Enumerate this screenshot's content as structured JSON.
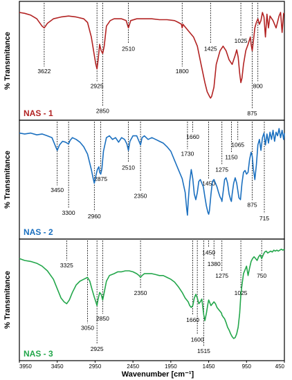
{
  "chart_data": {
    "type": "line",
    "xlabel": "Wavenumber [cm⁻¹]",
    "ylabel": "% Transmitance",
    "xlim": [
      3950,
      450
    ],
    "x_reversed": true,
    "x_ticks": [
      3950,
      3450,
      2950,
      2450,
      1950,
      1450,
      950,
      450
    ],
    "x_tick_labels": [
      "3950",
      "3450",
      "2950",
      "2450",
      "1950",
      "1450",
      "950",
      "450"
    ],
    "grid": false,
    "panels": [
      {
        "label": "NAS - 1",
        "color": "#b22222",
        "x": [
          3950,
          3880,
          3800,
          3720,
          3650,
          3622,
          3580,
          3500,
          3400,
          3300,
          3200,
          3100,
          3050,
          3000,
          2960,
          2940,
          2925,
          2910,
          2890,
          2870,
          2850,
          2830,
          2800,
          2750,
          2700,
          2600,
          2540,
          2510,
          2480,
          2400,
          2300,
          2200,
          2100,
          2000,
          1900,
          1850,
          1810,
          1800,
          1790,
          1750,
          1700,
          1650,
          1600,
          1550,
          1500,
          1470,
          1440,
          1425,
          1410,
          1380,
          1350,
          1300,
          1260,
          1220,
          1180,
          1140,
          1100,
          1080,
          1060,
          1040,
          1025,
          1010,
          990,
          960,
          930,
          900,
          890,
          875,
          860,
          840,
          820,
          800,
          780,
          760,
          740,
          720,
          700,
          680,
          660,
          640,
          600,
          560,
          520,
          500,
          480,
          460,
          450
        ],
        "y": [
          97,
          96,
          94,
          90,
          82,
          80,
          85,
          90,
          92,
          93,
          92,
          90,
          86,
          70,
          50,
          40,
          35,
          45,
          62,
          55,
          52,
          60,
          82,
          88,
          90,
          90,
          88,
          80,
          88,
          90,
          90,
          90,
          89,
          89,
          88,
          86,
          84,
          80,
          84,
          80,
          75,
          70,
          60,
          40,
          20,
          10,
          5,
          3,
          5,
          15,
          40,
          55,
          60,
          55,
          45,
          40,
          50,
          56,
          48,
          30,
          20,
          25,
          40,
          55,
          62,
          70,
          62,
          55,
          65,
          80,
          86,
          90,
          84,
          88,
          97,
          92,
          70,
          95,
          80,
          93,
          88,
          80,
          93,
          97,
          75,
          96,
          96
        ]
      },
      {
        "label": "NAS - 2",
        "color": "#1a6fbf",
        "x": [
          3950,
          3880,
          3800,
          3720,
          3650,
          3580,
          3520,
          3470,
          3450,
          3420,
          3380,
          3340,
          3300,
          3280,
          3250,
          3200,
          3150,
          3100,
          3050,
          3000,
          2975,
          2960,
          2940,
          2920,
          2900,
          2890,
          2875,
          2860,
          2840,
          2800,
          2760,
          2720,
          2680,
          2640,
          2600,
          2560,
          2530,
          2510,
          2490,
          2450,
          2400,
          2370,
          2350,
          2330,
          2300,
          2250,
          2200,
          2150,
          2100,
          2050,
          2000,
          1950,
          1900,
          1850,
          1800,
          1760,
          1740,
          1730,
          1720,
          1700,
          1680,
          1660,
          1640,
          1620,
          1600,
          1580,
          1560,
          1540,
          1520,
          1500,
          1480,
          1460,
          1450,
          1440,
          1420,
          1400,
          1380,
          1360,
          1340,
          1320,
          1300,
          1280,
          1275,
          1260,
          1240,
          1220,
          1200,
          1180,
          1160,
          1150,
          1140,
          1120,
          1100,
          1080,
          1065,
          1050,
          1030,
          1010,
          990,
          970,
          950,
          930,
          910,
          890,
          875,
          860,
          840,
          820,
          800,
          780,
          760,
          740,
          720,
          715,
          700,
          680,
          660,
          640,
          620,
          600,
          580,
          560,
          540,
          520,
          500,
          480,
          460,
          450
        ],
        "y": [
          95,
          94,
          95,
          93,
          94,
          92,
          90,
          80,
          76,
          82,
          86,
          85,
          83,
          87,
          90,
          88,
          85,
          80,
          72,
          55,
          45,
          40,
          48,
          55,
          58,
          52,
          50,
          56,
          75,
          90,
          92,
          88,
          90,
          85,
          90,
          88,
          83,
          76,
          86,
          92,
          92,
          86,
          82,
          90,
          92,
          88,
          90,
          88,
          86,
          84,
          80,
          75,
          65,
          55,
          45,
          30,
          12,
          5,
          20,
          42,
          55,
          45,
          28,
          22,
          30,
          42,
          44,
          40,
          36,
          25,
          15,
          8,
          6,
          10,
          28,
          42,
          44,
          40,
          36,
          30,
          25,
          22,
          20,
          30,
          44,
          46,
          40,
          28,
          22,
          20,
          28,
          40,
          46,
          40,
          32,
          24,
          22,
          40,
          52,
          54,
          50,
          52,
          66,
          74,
          70,
          56,
          44,
          60,
          82,
          88,
          76,
          90,
          95,
          92,
          82,
          94,
          84,
          96,
          88,
          98,
          86,
          96,
          92,
          100,
          90,
          98,
          88,
          95
        ]
      },
      {
        "label": "NAS - 3",
        "color": "#22a64a",
        "x": [
          3950,
          3880,
          3800,
          3720,
          3650,
          3580,
          3500,
          3440,
          3400,
          3360,
          3325,
          3290,
          3250,
          3200,
          3150,
          3100,
          3050,
          3020,
          2990,
          2960,
          2940,
          2925,
          2910,
          2890,
          2870,
          2850,
          2830,
          2800,
          2760,
          2700,
          2650,
          2600,
          2550,
          2500,
          2450,
          2400,
          2370,
          2350,
          2330,
          2300,
          2250,
          2200,
          2150,
          2100,
          2050,
          2000,
          1950,
          1900,
          1850,
          1800,
          1760,
          1720,
          1700,
          1680,
          1660,
          1640,
          1620,
          1600,
          1580,
          1560,
          1540,
          1515,
          1500,
          1480,
          1460,
          1450,
          1440,
          1420,
          1400,
          1380,
          1360,
          1340,
          1320,
          1300,
          1280,
          1275,
          1260,
          1240,
          1220,
          1200,
          1180,
          1160,
          1140,
          1120,
          1100,
          1080,
          1060,
          1040,
          1025,
          1010,
          990,
          970,
          950,
          930,
          910,
          890,
          870,
          850,
          830,
          810,
          790,
          770,
          750,
          730,
          710,
          690,
          670,
          650,
          630,
          610,
          590,
          570,
          550,
          530,
          510,
          490,
          470,
          450
        ],
        "y": [
          88,
          86,
          85,
          83,
          80,
          75,
          66,
          54,
          46,
          42,
          40,
          44,
          52,
          60,
          64,
          66,
          68,
          64,
          55,
          47,
          42,
          38,
          45,
          52,
          50,
          44,
          52,
          64,
          70,
          72,
          74,
          74,
          75,
          75,
          74,
          72,
          70,
          68,
          70,
          72,
          72,
          72,
          71,
          70,
          70,
          68,
          66,
          63,
          58,
          52,
          46,
          42,
          38,
          36,
          38,
          46,
          50,
          46,
          40,
          42,
          45,
          28,
          22,
          30,
          40,
          44,
          42,
          38,
          40,
          42,
          40,
          36,
          34,
          32,
          30,
          28,
          26,
          24,
          20,
          15,
          12,
          8,
          5,
          3,
          4,
          8,
          15,
          30,
          50,
          60,
          72,
          76,
          80,
          70,
          78,
          85,
          88,
          90,
          88,
          86,
          90,
          92,
          88,
          92,
          95,
          96,
          94,
          95,
          96,
          95,
          97,
          96,
          97,
          96,
          97,
          98,
          97,
          98
        ]
      }
    ],
    "annotations": {
      "panel_1": [
        {
          "text": "3622",
          "x": 3622,
          "end_y": 0.55
        },
        {
          "text": "2925",
          "x": 2925,
          "end_y": 0.68
        },
        {
          "text": "2850",
          "x": 2850,
          "end_y": 0.9
        },
        {
          "text": "2510",
          "x": 2510,
          "end_y": 0.35
        },
        {
          "text": "1800",
          "x": 1800,
          "end_y": 0.55
        },
        {
          "text": "1425",
          "x": 1425,
          "end_y": 0.35
        },
        {
          "text": "1025",
          "x": 1025,
          "end_y": 0.28
        },
        {
          "text": "875",
          "x": 875,
          "end_y": 0.92
        },
        {
          "text": "800",
          "x": 800,
          "end_y": 0.68
        }
      ],
      "panel_2": [
        {
          "text": "3450",
          "x": 3450,
          "end_y": 0.55
        },
        {
          "text": "3300",
          "x": 3300,
          "end_y": 0.75
        },
        {
          "text": "2960",
          "x": 2960,
          "end_y": 0.78
        },
        {
          "text": "2875",
          "x": 2875,
          "end_y": 0.45
        },
        {
          "text": "2510",
          "x": 2510,
          "end_y": 0.35
        },
        {
          "text": "2350",
          "x": 2350,
          "end_y": 0.6
        },
        {
          "text": "1730",
          "x": 1730,
          "end_y": 0.23
        },
        {
          "text": "1660",
          "x": 1660,
          "end_y": 0.08
        },
        {
          "text": "1450",
          "x": 1450,
          "end_y": 0.49
        },
        {
          "text": "1275",
          "x": 1275,
          "end_y": 0.37
        },
        {
          "text": "1150",
          "x": 1150,
          "end_y": 0.26
        },
        {
          "text": "1065",
          "x": 1065,
          "end_y": 0.15
        },
        {
          "text": "875",
          "x": 875,
          "end_y": 0.68
        },
        {
          "text": "715",
          "x": 715,
          "end_y": 0.8
        }
      ],
      "panel_3": [
        {
          "text": "3325",
          "x": 3325,
          "end_y": 0.16
        },
        {
          "text": "3050",
          "x": 3050,
          "end_y": 0.7
        },
        {
          "text": "2925",
          "x": 2925,
          "end_y": 0.88
        },
        {
          "text": "2850",
          "x": 2850,
          "end_y": 0.62
        },
        {
          "text": "2350",
          "x": 2350,
          "end_y": 0.4
        },
        {
          "text": "1660",
          "x": 1660,
          "end_y": 0.63
        },
        {
          "text": "1600",
          "x": 1600,
          "end_y": 0.8
        },
        {
          "text": "1515",
          "x": 1515,
          "end_y": 0.9
        },
        {
          "text": "1450",
          "x": 1450,
          "end_y": 0.05
        },
        {
          "text": "1380",
          "x": 1380,
          "end_y": 0.15
        },
        {
          "text": "1275",
          "x": 1275,
          "end_y": 0.25
        },
        {
          "text": "1025",
          "x": 1025,
          "end_y": 0.4
        },
        {
          "text": "750",
          "x": 750,
          "end_y": 0.25
        }
      ]
    }
  }
}
